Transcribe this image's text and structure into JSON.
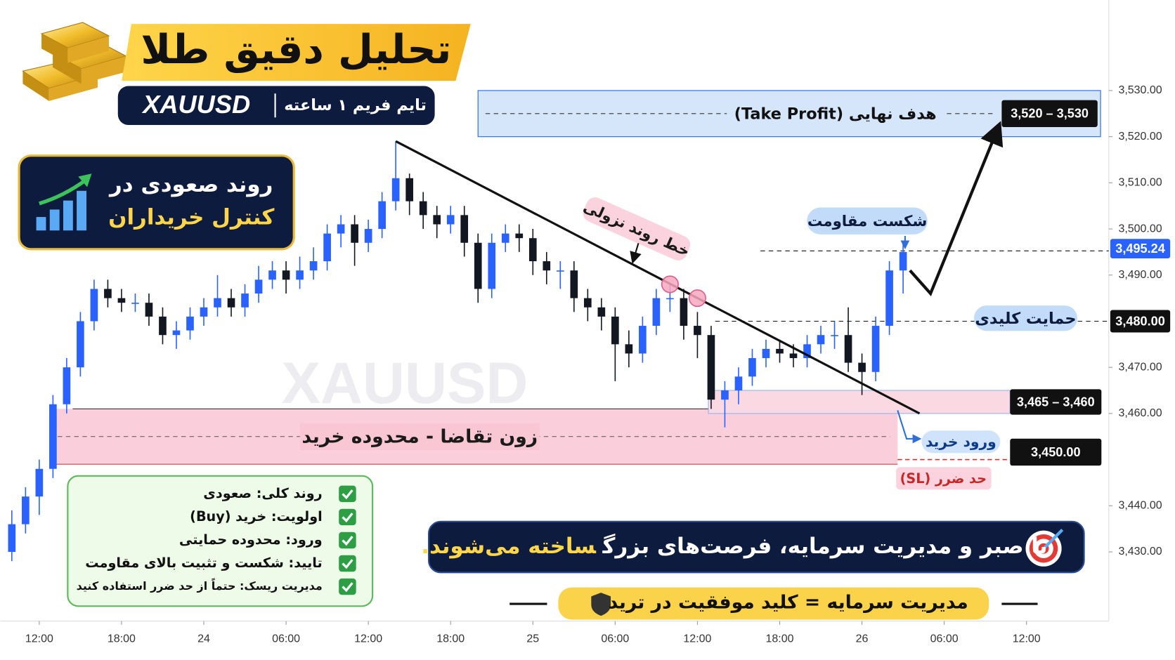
{
  "header": {
    "title": "تحلیل دقیق طلا",
    "symbol": "XAUUSD",
    "timeframe": "تایم فریم ۱ ساعته"
  },
  "trend_box": {
    "line1": "روند صعودی در",
    "line2": "کنترل خریداران"
  },
  "watermark": "XAUUSD",
  "checklist": [
    "روند کلی: صعودی",
    "اولویت: خرید (Buy)",
    "ورود: محدوده حمایتی",
    "تایید: شکست و تثبیت بالای مقاومت",
    "مدیریت ریسک: حتماً از حد ضرر استفاده کنید"
  ],
  "banner": {
    "text": "با صبر و مدیریت سرمایه، فرصت‌های بزرگ",
    "highlight": "ساخته می‌شوند."
  },
  "footer": "مدیریت سرمایه = کلید موفقیت در ترید",
  "chart_data": {
    "type": "candlestick",
    "x": [
      -2,
      -1,
      0,
      1,
      2,
      3,
      4,
      5,
      6,
      7,
      8,
      9,
      10,
      11,
      12,
      13,
      14,
      15,
      16,
      17,
      18,
      19,
      20,
      21,
      22,
      23,
      24,
      25,
      26,
      27,
      28,
      29,
      30,
      31,
      32,
      33,
      34,
      35,
      36,
      37,
      38,
      39,
      40,
      41,
      42,
      43,
      44,
      45,
      46,
      47,
      48,
      49,
      50,
      51,
      52,
      53,
      54,
      55,
      56,
      57,
      58,
      59,
      60,
      61,
      62,
      63
    ],
    "open": [
      3430,
      3436,
      3442,
      3448,
      3462,
      3470,
      3480,
      3487,
      3485,
      3484,
      3484,
      3481,
      3477,
      3478,
      3481,
      3483,
      3485,
      3483,
      3486,
      3489,
      3491,
      3489,
      3491,
      3493,
      3499,
      3501,
      3497,
      3500,
      3506,
      3511,
      3506,
      3503,
      3501,
      3503,
      3497,
      3487,
      3497,
      3499,
      3498,
      3493,
      3491,
      3491,
      3485,
      3483,
      3481,
      3475,
      3473,
      3479,
      3485,
      3485,
      3479,
      3477,
      3463,
      3465,
      3468,
      3472,
      3474,
      3473,
      3472,
      3475,
      3477,
      3477,
      3471,
      3469,
      3479,
      3491
    ],
    "high": [
      3439,
      3444,
      3450,
      3464,
      3472,
      3482,
      3489,
      3489,
      3487,
      3486,
      3486,
      3483,
      3480,
      3483,
      3485,
      3490,
      3487,
      3488,
      3492,
      3493,
      3493,
      3494,
      3496,
      3501,
      3503,
      3503,
      3502,
      3508,
      3519,
      3512,
      3508,
      3505,
      3505,
      3505,
      3499,
      3499,
      3501,
      3501,
      3500,
      3495,
      3493,
      3493,
      3487,
      3485,
      3483,
      3478,
      3481,
      3487,
      3488,
      3487,
      3482,
      3479,
      3467,
      3470,
      3474,
      3476,
      3476,
      3475,
      3477,
      3479,
      3480,
      3483,
      3473,
      3481,
      3493,
      3497
    ],
    "low": [
      3428,
      3434,
      3438,
      3446,
      3460,
      3468,
      3478,
      3483,
      3482,
      3482,
      3479,
      3475,
      3474,
      3476,
      3479,
      3481,
      3481,
      3481,
      3484,
      3487,
      3486,
      3487,
      3489,
      3491,
      3496,
      3492,
      3495,
      3498,
      3504,
      3503,
      3500,
      3498,
      3499,
      3494,
      3484,
      3485,
      3495,
      3495,
      3490,
      3488,
      3487,
      3482,
      3480,
      3478,
      3467,
      3470,
      3471,
      3477,
      3482,
      3476,
      3472,
      3461,
      3457,
      3462,
      3466,
      3470,
      3471,
      3470,
      3470,
      3473,
      3474,
      3469,
      3464,
      3467,
      3477,
      3486
    ],
    "close": [
      3436,
      3442,
      3448,
      3462,
      3470,
      3480,
      3487,
      3485,
      3484,
      3484,
      3481,
      3477,
      3478,
      3481,
      3483,
      3485,
      3483,
      3486,
      3489,
      3491,
      3489,
      3491,
      3493,
      3499,
      3501,
      3497,
      3500,
      3506,
      3511,
      3506,
      3503,
      3501,
      3503,
      3497,
      3487,
      3497,
      3499,
      3498,
      3493,
      3491,
      3491,
      3485,
      3483,
      3481,
      3475,
      3473,
      3479,
      3485,
      3485,
      3479,
      3477,
      3463,
      3465,
      3468,
      3472,
      3474,
      3473,
      3472,
      3475,
      3477,
      3477,
      3471,
      3469,
      3479,
      3491,
      3495
    ],
    "colors": {
      "up": "#2962ff",
      "down": "#131722"
    },
    "xlim": [
      -2.84,
      78
    ],
    "ylim": [
      3415,
      3548
    ],
    "xticks": [
      {
        "value": 0,
        "label": "12:00"
      },
      {
        "value": 6,
        "label": "18:00"
      },
      {
        "value": 12,
        "label": "24"
      },
      {
        "value": 18,
        "label": "06:00"
      },
      {
        "value": 24,
        "label": "12:00"
      },
      {
        "value": 30,
        "label": "18:00"
      },
      {
        "value": 36,
        "label": "25"
      },
      {
        "value": 42,
        "label": "06:00"
      },
      {
        "value": 48,
        "label": "12:00"
      },
      {
        "value": 54,
        "label": "18:00"
      },
      {
        "value": 60,
        "label": "26"
      },
      {
        "value": 66,
        "label": "06:00"
      },
      {
        "value": 72,
        "label": "12:00"
      }
    ],
    "yticks": [
      {
        "value": 3430,
        "label": "3,430.00"
      },
      {
        "value": 3440,
        "label": "3,440.00"
      },
      {
        "value": 3460,
        "label": "3,460.00"
      },
      {
        "value": 3470,
        "label": "3,470.00"
      },
      {
        "value": 3490,
        "label": "3,490.00"
      },
      {
        "value": 3500,
        "label": "3,500.00"
      },
      {
        "value": 3510,
        "label": "3,510.00"
      },
      {
        "value": 3520,
        "label": "3,520.00"
      },
      {
        "value": 3530,
        "label": "3,530.00"
      }
    ],
    "annotations": {
      "target_zone": {
        "low": 3520,
        "high": 3530,
        "x": [
          32,
          77.4
        ],
        "label": "3,520 – 3,530",
        "text": "هدف نهایی (Take Profit)"
      },
      "resistance": {
        "value": 3495.24,
        "x": [
          52.6,
          78
        ],
        "label": "3,495.24",
        "text": "شکست مقاومت"
      },
      "support": {
        "value": 3480,
        "x": [
          49.3,
          78
        ],
        "label": "3,480.00",
        "text": "حمایت کلیدی"
      },
      "entry_zone": {
        "low": 3460,
        "high": 3465,
        "x": [
          48.8,
          70.8
        ],
        "label": "3,465 – 3,460",
        "text": "ورود خرید"
      },
      "demand_zone": {
        "low": 3449,
        "high": 3461,
        "x": [
          0.8,
          62.6
        ],
        "text": "زون تقاضا - محدوده خرید"
      },
      "stop_loss": {
        "value": 3450,
        "x": [
          62.6,
          70.8
        ],
        "label": "3,450.00",
        "text": "حد ضرر (SL)"
      },
      "trendline": {
        "x": [
          26,
          64.2
        ],
        "y": [
          3519,
          3460
        ],
        "text": "خط روند نزولی"
      },
      "touches": {
        "x": [
          46,
          48
        ],
        "y": [
          3488,
          3485
        ]
      },
      "projection": {
        "x": [
          63.5,
          65,
          69.8
        ],
        "y": [
          3491,
          3486,
          3521
        ]
      }
    }
  }
}
